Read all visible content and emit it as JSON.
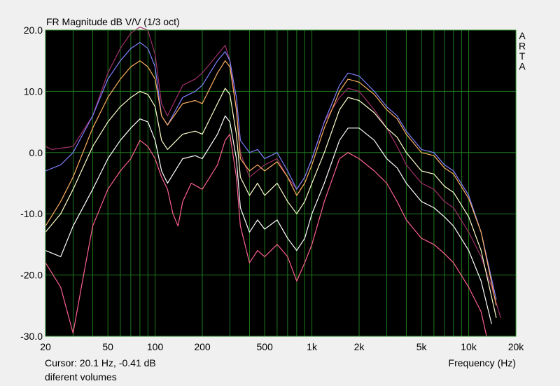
{
  "chart_data": {
    "type": "line",
    "title": "FR Magnitude dB V/V (1/3 oct)",
    "xlabel": "Frequency (Hz)",
    "ylabel": "",
    "x_scale": "log",
    "xlim": [
      20,
      20000
    ],
    "ylim": [
      -30,
      20
    ],
    "x_ticks": [
      20,
      50,
      100,
      200,
      500,
      1000,
      2000,
      5000,
      10000,
      20000
    ],
    "x_tick_labels": [
      "20",
      "50",
      "100",
      "200",
      "500",
      "1k",
      "2k",
      "5k",
      "10k",
      "20k"
    ],
    "y_ticks": [
      20,
      10,
      0,
      -10,
      -20,
      -30
    ],
    "y_tick_labels": [
      "20.0",
      "10.0",
      "0.0",
      "-10.0",
      "-20.0",
      "-30.0"
    ],
    "grid": true,
    "background": "#000000",
    "grid_color": "#1f7a1f",
    "watermark": [
      "A",
      "R",
      "T",
      "A"
    ],
    "series": [
      {
        "color": "#a0306a",
        "points": [
          [
            20,
            1
          ],
          [
            22,
            0.5
          ],
          [
            30,
            1
          ],
          [
            40,
            6
          ],
          [
            50,
            13
          ],
          [
            60,
            17
          ],
          [
            70,
            19.5
          ],
          [
            80,
            20.5
          ],
          [
            90,
            20
          ],
          [
            100,
            16
          ],
          [
            110,
            8
          ],
          [
            120,
            6
          ],
          [
            150,
            11
          ],
          [
            180,
            12
          ],
          [
            200,
            13
          ],
          [
            250,
            16
          ],
          [
            280,
            17.5
          ],
          [
            300,
            15
          ],
          [
            330,
            7
          ],
          [
            350,
            0
          ],
          [
            400,
            -4
          ],
          [
            500,
            -2
          ],
          [
            600,
            -1
          ],
          [
            700,
            -4
          ],
          [
            800,
            -6
          ],
          [
            900,
            -4
          ],
          [
            1000,
            -1
          ],
          [
            1200,
            5
          ],
          [
            1500,
            9
          ],
          [
            1700,
            10.5
          ],
          [
            2000,
            10
          ],
          [
            2500,
            7
          ],
          [
            3000,
            4
          ],
          [
            3500,
            1
          ],
          [
            4000,
            -2
          ],
          [
            5000,
            -5
          ],
          [
            6000,
            -6
          ],
          [
            7000,
            -8
          ],
          [
            8000,
            -9
          ],
          [
            10000,
            -13
          ],
          [
            12000,
            -17
          ],
          [
            14000,
            -22
          ],
          [
            16000,
            -27
          ]
        ]
      },
      {
        "color": "#8080ff",
        "points": [
          [
            20,
            -3
          ],
          [
            25,
            -2
          ],
          [
            30,
            0
          ],
          [
            40,
            6
          ],
          [
            50,
            12
          ],
          [
            60,
            15
          ],
          [
            70,
            17
          ],
          [
            80,
            18
          ],
          [
            90,
            17
          ],
          [
            100,
            14
          ],
          [
            110,
            6
          ],
          [
            120,
            4.5
          ],
          [
            150,
            9
          ],
          [
            180,
            10
          ],
          [
            200,
            11
          ],
          [
            250,
            15
          ],
          [
            280,
            16.5
          ],
          [
            300,
            15
          ],
          [
            330,
            9
          ],
          [
            350,
            2
          ],
          [
            400,
            0
          ],
          [
            450,
            0.5
          ],
          [
            500,
            -1
          ],
          [
            600,
            0
          ],
          [
            700,
            -3
          ],
          [
            800,
            -6
          ],
          [
            900,
            -4
          ],
          [
            1000,
            -1
          ],
          [
            1200,
            5
          ],
          [
            1500,
            11
          ],
          [
            1700,
            13
          ],
          [
            2000,
            12.5
          ],
          [
            2500,
            10
          ],
          [
            3000,
            7.5
          ],
          [
            3500,
            6
          ],
          [
            4000,
            3.5
          ],
          [
            5000,
            0.5
          ],
          [
            6000,
            0
          ],
          [
            7000,
            -2
          ],
          [
            8000,
            -3
          ],
          [
            10000,
            -7
          ],
          [
            12000,
            -13
          ],
          [
            15000,
            -24
          ]
        ]
      },
      {
        "color": "#ffb060",
        "points": [
          [
            20,
            -12
          ],
          [
            25,
            -8
          ],
          [
            30,
            -4
          ],
          [
            40,
            4
          ],
          [
            50,
            9
          ],
          [
            60,
            12
          ],
          [
            70,
            14
          ],
          [
            80,
            15
          ],
          [
            90,
            14
          ],
          [
            100,
            12
          ],
          [
            110,
            6
          ],
          [
            120,
            4.5
          ],
          [
            150,
            8
          ],
          [
            180,
            8.5
          ],
          [
            200,
            8
          ],
          [
            250,
            13
          ],
          [
            280,
            15
          ],
          [
            300,
            14
          ],
          [
            330,
            7
          ],
          [
            350,
            -1
          ],
          [
            400,
            -3
          ],
          [
            450,
            -2
          ],
          [
            500,
            -3
          ],
          [
            600,
            -1.5
          ],
          [
            700,
            -4
          ],
          [
            800,
            -7
          ],
          [
            900,
            -5
          ],
          [
            1000,
            -2
          ],
          [
            1200,
            4
          ],
          [
            1500,
            10
          ],
          [
            1700,
            12
          ],
          [
            2000,
            11.5
          ],
          [
            2500,
            9.5
          ],
          [
            3000,
            7
          ],
          [
            3500,
            5.5
          ],
          [
            4000,
            3
          ],
          [
            5000,
            0
          ],
          [
            6000,
            -0.5
          ],
          [
            7000,
            -2.5
          ],
          [
            8000,
            -3.5
          ],
          [
            10000,
            -7.5
          ],
          [
            12000,
            -13
          ],
          [
            15000,
            -25
          ]
        ]
      },
      {
        "color": "#ffffcc",
        "points": [
          [
            20,
            -13
          ],
          [
            25,
            -10
          ],
          [
            30,
            -6
          ],
          [
            40,
            1
          ],
          [
            50,
            5
          ],
          [
            60,
            7.5
          ],
          [
            70,
            9
          ],
          [
            80,
            10
          ],
          [
            90,
            9.5
          ],
          [
            100,
            7.5
          ],
          [
            110,
            2
          ],
          [
            120,
            0.5
          ],
          [
            150,
            3
          ],
          [
            180,
            3.5
          ],
          [
            200,
            3
          ],
          [
            250,
            8
          ],
          [
            280,
            10.5
          ],
          [
            300,
            9.5
          ],
          [
            330,
            3
          ],
          [
            350,
            -4
          ],
          [
            400,
            -7
          ],
          [
            450,
            -5
          ],
          [
            500,
            -7
          ],
          [
            600,
            -5
          ],
          [
            700,
            -8
          ],
          [
            800,
            -10
          ],
          [
            900,
            -8
          ],
          [
            1000,
            -5
          ],
          [
            1200,
            0
          ],
          [
            1500,
            7
          ],
          [
            1700,
            9
          ],
          [
            2000,
            8.5
          ],
          [
            2500,
            6.5
          ],
          [
            3000,
            4
          ],
          [
            3500,
            2.5
          ],
          [
            4000,
            0
          ],
          [
            5000,
            -3
          ],
          [
            6000,
            -3.5
          ],
          [
            7000,
            -5.5
          ],
          [
            8000,
            -6.5
          ],
          [
            10000,
            -10.5
          ],
          [
            12000,
            -16
          ],
          [
            15000,
            -27
          ]
        ]
      },
      {
        "color": "#ffffff",
        "points": [
          [
            20,
            -16
          ],
          [
            25,
            -17
          ],
          [
            30,
            -12
          ],
          [
            40,
            -6
          ],
          [
            50,
            -1
          ],
          [
            60,
            2
          ],
          [
            70,
            4
          ],
          [
            80,
            5.5
          ],
          [
            90,
            5
          ],
          [
            100,
            2
          ],
          [
            110,
            -3
          ],
          [
            120,
            -5
          ],
          [
            150,
            -1
          ],
          [
            180,
            -0.5
          ],
          [
            200,
            -1
          ],
          [
            250,
            3
          ],
          [
            280,
            6
          ],
          [
            300,
            5
          ],
          [
            330,
            -1
          ],
          [
            350,
            -9
          ],
          [
            400,
            -13
          ],
          [
            450,
            -11
          ],
          [
            500,
            -12.5
          ],
          [
            600,
            -11
          ],
          [
            700,
            -14
          ],
          [
            800,
            -16
          ],
          [
            900,
            -14
          ],
          [
            1000,
            -10
          ],
          [
            1200,
            -5
          ],
          [
            1500,
            2
          ],
          [
            1700,
            4
          ],
          [
            2000,
            4
          ],
          [
            2500,
            2
          ],
          [
            3000,
            -1
          ],
          [
            3500,
            -2.5
          ],
          [
            4000,
            -5
          ],
          [
            5000,
            -8
          ],
          [
            6000,
            -9
          ],
          [
            7000,
            -10.5
          ],
          [
            8000,
            -12
          ],
          [
            10000,
            -16
          ],
          [
            12000,
            -21
          ],
          [
            14000,
            -28
          ]
        ]
      },
      {
        "color": "#ff6090",
        "points": [
          [
            20,
            -18
          ],
          [
            25,
            -22
          ],
          [
            30,
            -29.5
          ],
          [
            35,
            -20
          ],
          [
            40,
            -12
          ],
          [
            50,
            -6
          ],
          [
            60,
            -3
          ],
          [
            70,
            -1
          ],
          [
            80,
            2
          ],
          [
            90,
            1
          ],
          [
            100,
            -1
          ],
          [
            110,
            -4
          ],
          [
            120,
            -6
          ],
          [
            130,
            -10
          ],
          [
            140,
            -12
          ],
          [
            150,
            -8
          ],
          [
            170,
            -5
          ],
          [
            200,
            -6
          ],
          [
            250,
            -2
          ],
          [
            280,
            2
          ],
          [
            300,
            3
          ],
          [
            330,
            -4
          ],
          [
            350,
            -12
          ],
          [
            400,
            -18
          ],
          [
            450,
            -16
          ],
          [
            500,
            -17
          ],
          [
            600,
            -15
          ],
          [
            700,
            -17
          ],
          [
            800,
            -21
          ],
          [
            900,
            -18
          ],
          [
            1000,
            -15
          ],
          [
            1200,
            -8
          ],
          [
            1500,
            -1
          ],
          [
            1700,
            0
          ],
          [
            2000,
            -1
          ],
          [
            2500,
            -3
          ],
          [
            3000,
            -5
          ],
          [
            3500,
            -8
          ],
          [
            4000,
            -11
          ],
          [
            5000,
            -14
          ],
          [
            6000,
            -15
          ],
          [
            7000,
            -16.5
          ],
          [
            8000,
            -18
          ],
          [
            10000,
            -22
          ],
          [
            12000,
            -26
          ],
          [
            13000,
            -30
          ]
        ]
      }
    ]
  },
  "status": {
    "cursor": "Cursor: 20.1 Hz, -0.41 dB",
    "note": "diferent volumes"
  }
}
